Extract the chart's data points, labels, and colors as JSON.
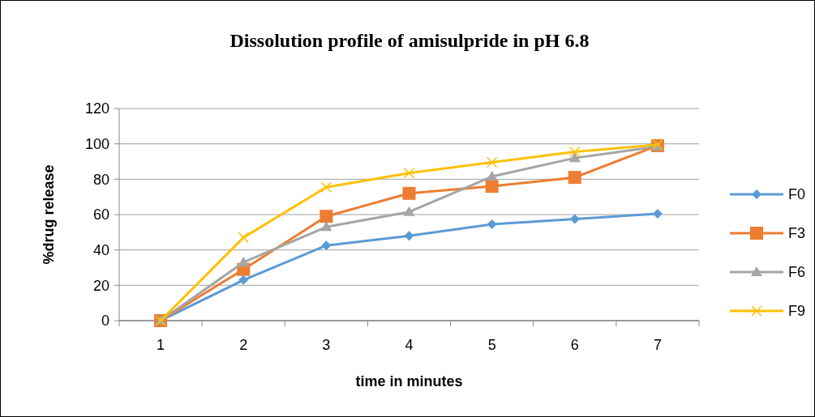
{
  "chart_data": {
    "type": "line",
    "title": "Dissolution profile of amisulpride in pH 6.8",
    "xlabel": "time in minutes",
    "ylabel": "%drug release",
    "categories": [
      "1",
      "2",
      "3",
      "4",
      "5",
      "6",
      "7"
    ],
    "ylim": [
      0,
      120
    ],
    "yticks": [
      0,
      20,
      40,
      60,
      80,
      100,
      120
    ],
    "grid": "y",
    "legend": "right",
    "series": [
      {
        "name": "F0",
        "color": "#5b9bd5",
        "marker": "diamond",
        "values": [
          0,
          23,
          42.5,
          48,
          54.5,
          57.5,
          60.5
        ]
      },
      {
        "name": "F3",
        "color": "#ed7d31",
        "marker": "square",
        "values": [
          0,
          29,
          59,
          72,
          76,
          81,
          99
        ]
      },
      {
        "name": "F6",
        "color": "#a5a5a5",
        "marker": "triangle",
        "values": [
          0,
          33,
          53,
          61.5,
          81.5,
          92,
          98.5
        ]
      },
      {
        "name": "F9",
        "color": "#ffc000",
        "marker": "cross",
        "values": [
          0,
          47,
          75.5,
          83.5,
          89.5,
          95.5,
          99.5
        ]
      }
    ]
  }
}
